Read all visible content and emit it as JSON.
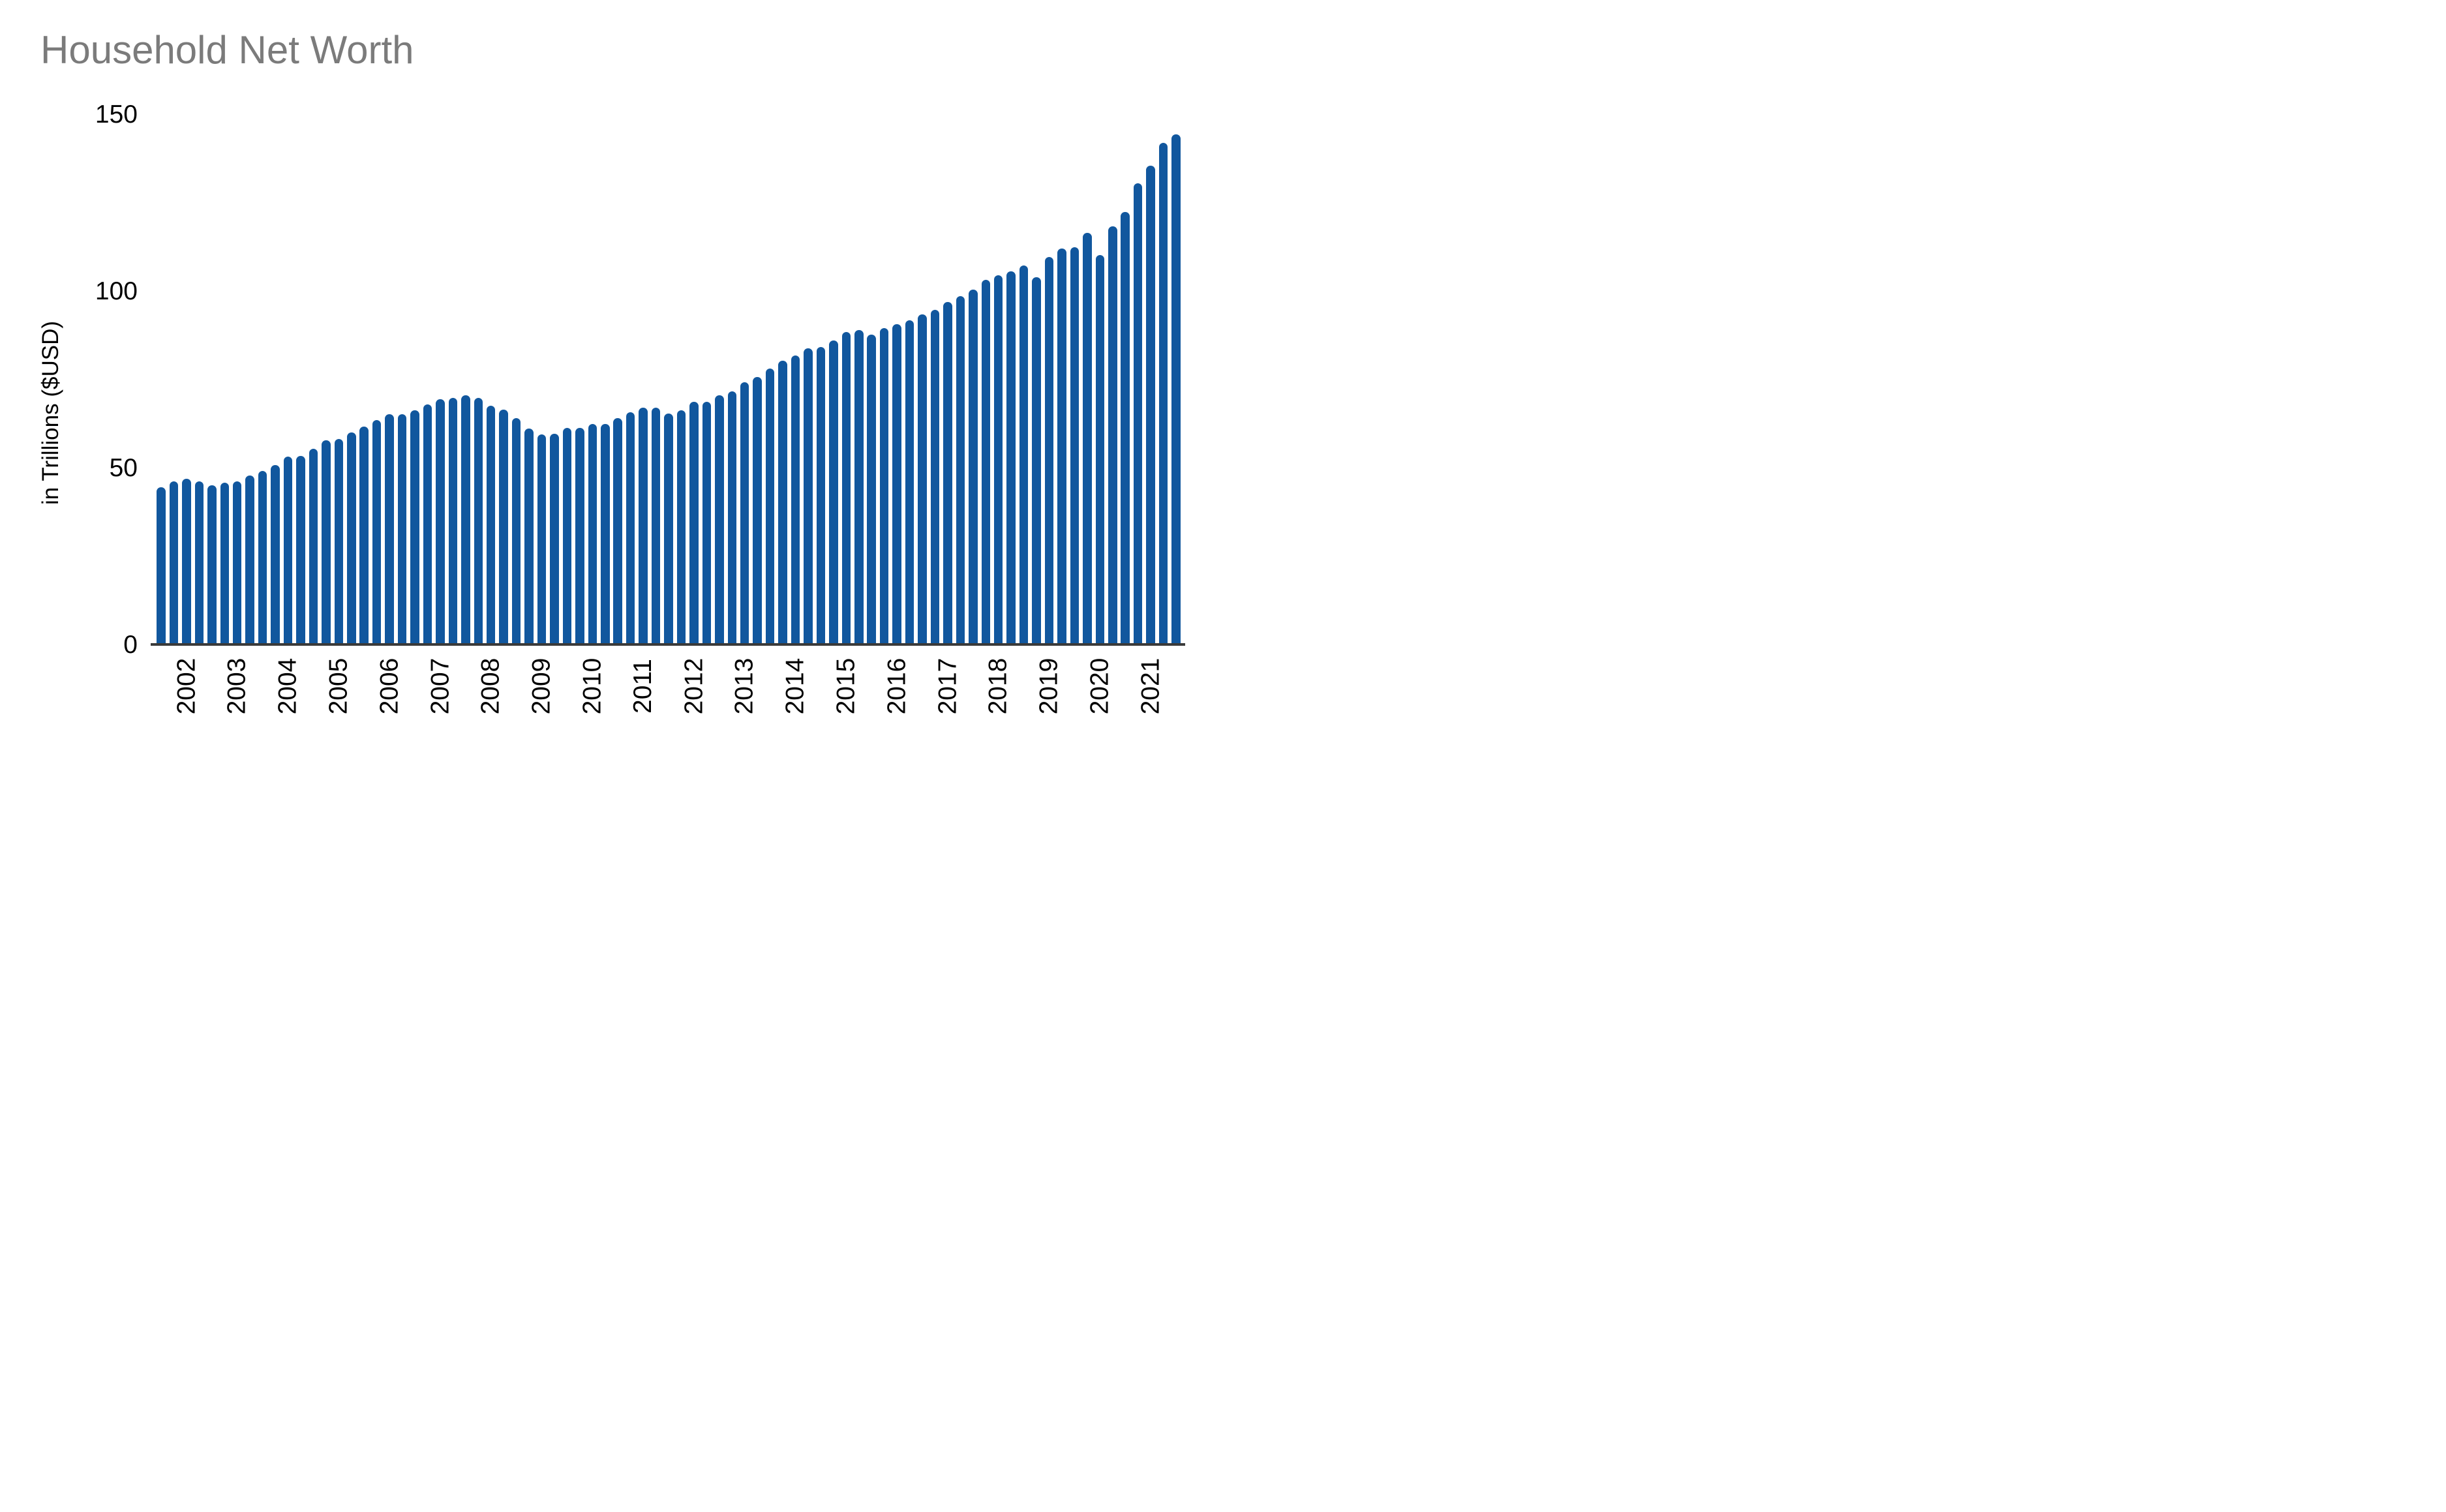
{
  "title": "Household Net Worth",
  "y_axis": {
    "label": "in Trillions ($USD)",
    "ticks": [
      0,
      50,
      100,
      150
    ]
  },
  "x_axis": {
    "tick_labels": [
      "2002",
      "2003",
      "2004",
      "2005",
      "2006",
      "2007",
      "2008",
      "2009",
      "2010",
      "2011",
      "2012",
      "2013",
      "2014",
      "2015",
      "2016",
      "2017",
      "2018",
      "2019",
      "2020",
      "2021"
    ]
  },
  "colors": {
    "bar": "#11579E",
    "title": "#7B7B7B",
    "axis_line": "#3A3A3A",
    "tick_text": "#000000",
    "background": "#FFFFFF"
  },
  "chart_data": {
    "type": "bar",
    "title": "Household Net Worth",
    "xlabel": "",
    "ylabel": "in Trillions ($USD)",
    "ylim": [
      0,
      150
    ],
    "yticks": [
      0,
      50,
      100,
      150
    ],
    "grid": false,
    "legend": false,
    "bar_color": "#11579E",
    "rounded_bar_tops": true,
    "x_tick_positions": "first quarter of each year",
    "x": [
      "2001Q3",
      "2001Q4",
      "2002Q1",
      "2002Q2",
      "2002Q3",
      "2002Q4",
      "2003Q1",
      "2003Q2",
      "2003Q3",
      "2003Q4",
      "2004Q1",
      "2004Q2",
      "2004Q3",
      "2004Q4",
      "2005Q1",
      "2005Q2",
      "2005Q3",
      "2005Q4",
      "2006Q1",
      "2006Q2",
      "2006Q3",
      "2006Q4",
      "2007Q1",
      "2007Q2",
      "2007Q3",
      "2007Q4",
      "2008Q1",
      "2008Q2",
      "2008Q3",
      "2008Q4",
      "2009Q1",
      "2009Q2",
      "2009Q3",
      "2009Q4",
      "2010Q1",
      "2010Q2",
      "2010Q3",
      "2010Q4",
      "2011Q1",
      "2011Q2",
      "2011Q3",
      "2011Q4",
      "2012Q1",
      "2012Q2",
      "2012Q3",
      "2012Q4",
      "2013Q1",
      "2013Q2",
      "2013Q3",
      "2013Q4",
      "2014Q1",
      "2014Q2",
      "2014Q3",
      "2014Q4",
      "2015Q1",
      "2015Q2",
      "2015Q3",
      "2015Q4",
      "2016Q1",
      "2016Q2",
      "2016Q3",
      "2016Q4",
      "2017Q1",
      "2017Q2",
      "2017Q3",
      "2017Q4",
      "2018Q1",
      "2018Q2",
      "2018Q3",
      "2018Q4",
      "2019Q1",
      "2019Q2",
      "2019Q3",
      "2019Q4",
      "2020Q1",
      "2020Q2",
      "2020Q3",
      "2020Q4",
      "2021Q1",
      "2021Q2",
      "2021Q3"
    ],
    "values": [
      44.5,
      46.2,
      46.9,
      46.2,
      45.2,
      45.8,
      46.2,
      47.8,
      49.2,
      50.9,
      53.2,
      53.5,
      55.4,
      57.8,
      58.3,
      60.0,
      61.8,
      63.6,
      65.2,
      65.3,
      66.4,
      68.0,
      69.4,
      69.9,
      70.6,
      69.9,
      67.7,
      66.5,
      64.1,
      61.2,
      59.5,
      59.7,
      61.4,
      61.3,
      62.5,
      62.5,
      64.1,
      65.8,
      67.1,
      67.1,
      65.4,
      66.4,
      68.8,
      68.8,
      70.5,
      71.7,
      74.3,
      75.7,
      78.1,
      80.4,
      81.9,
      83.8,
      84.3,
      86.0,
      88.4,
      89.0,
      87.7,
      89.6,
      90.7,
      91.8,
      93.5,
      94.7,
      97.0,
      98.7,
      100.4,
      103.3,
      104.6,
      105.6,
      107.3,
      104.0,
      109.7,
      112.0,
      112.5,
      116.6,
      110.2,
      118.3,
      122.5,
      130.5,
      135.5,
      141.9,
      144.4
    ]
  }
}
